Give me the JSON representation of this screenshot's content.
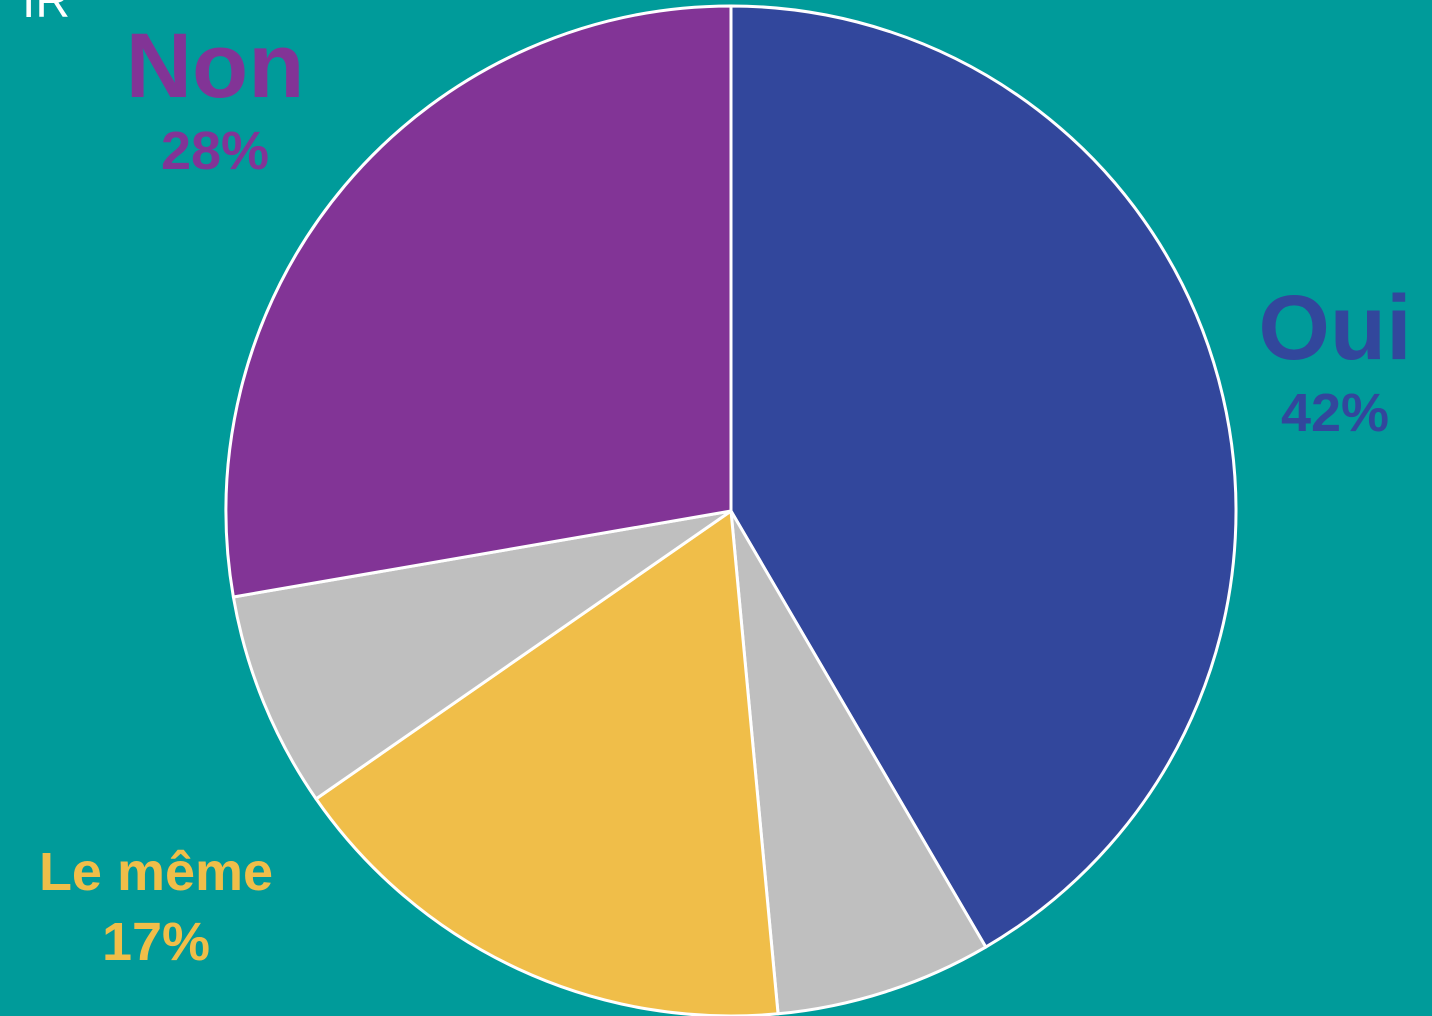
{
  "corner_text": "IR",
  "chart_data": {
    "type": "pie",
    "start_angle_deg": 0,
    "direction": "clockwise",
    "slices": [
      {
        "name": "Oui",
        "value": 42,
        "label": "42%",
        "color": "#32479c"
      },
      {
        "name": "",
        "value": 7,
        "label": "",
        "color": "#bfbfbf"
      },
      {
        "name": "Le même",
        "value": 17,
        "label": "17%",
        "color": "#f0be49"
      },
      {
        "name": "",
        "value": 7,
        "label": "",
        "color": "#bfbfbf"
      },
      {
        "name": "Non",
        "value": 28,
        "label": "28%",
        "color": "#823496"
      }
    ],
    "stroke_color": "#ffffff"
  },
  "labels": {
    "non": {
      "name": "Non",
      "pct": "28%",
      "color": "#823496"
    },
    "oui": {
      "name": "Oui",
      "pct": "42%",
      "color": "#32479c"
    },
    "meme": {
      "name": "Le même",
      "pct": "17%",
      "color": "#f0be49"
    }
  }
}
